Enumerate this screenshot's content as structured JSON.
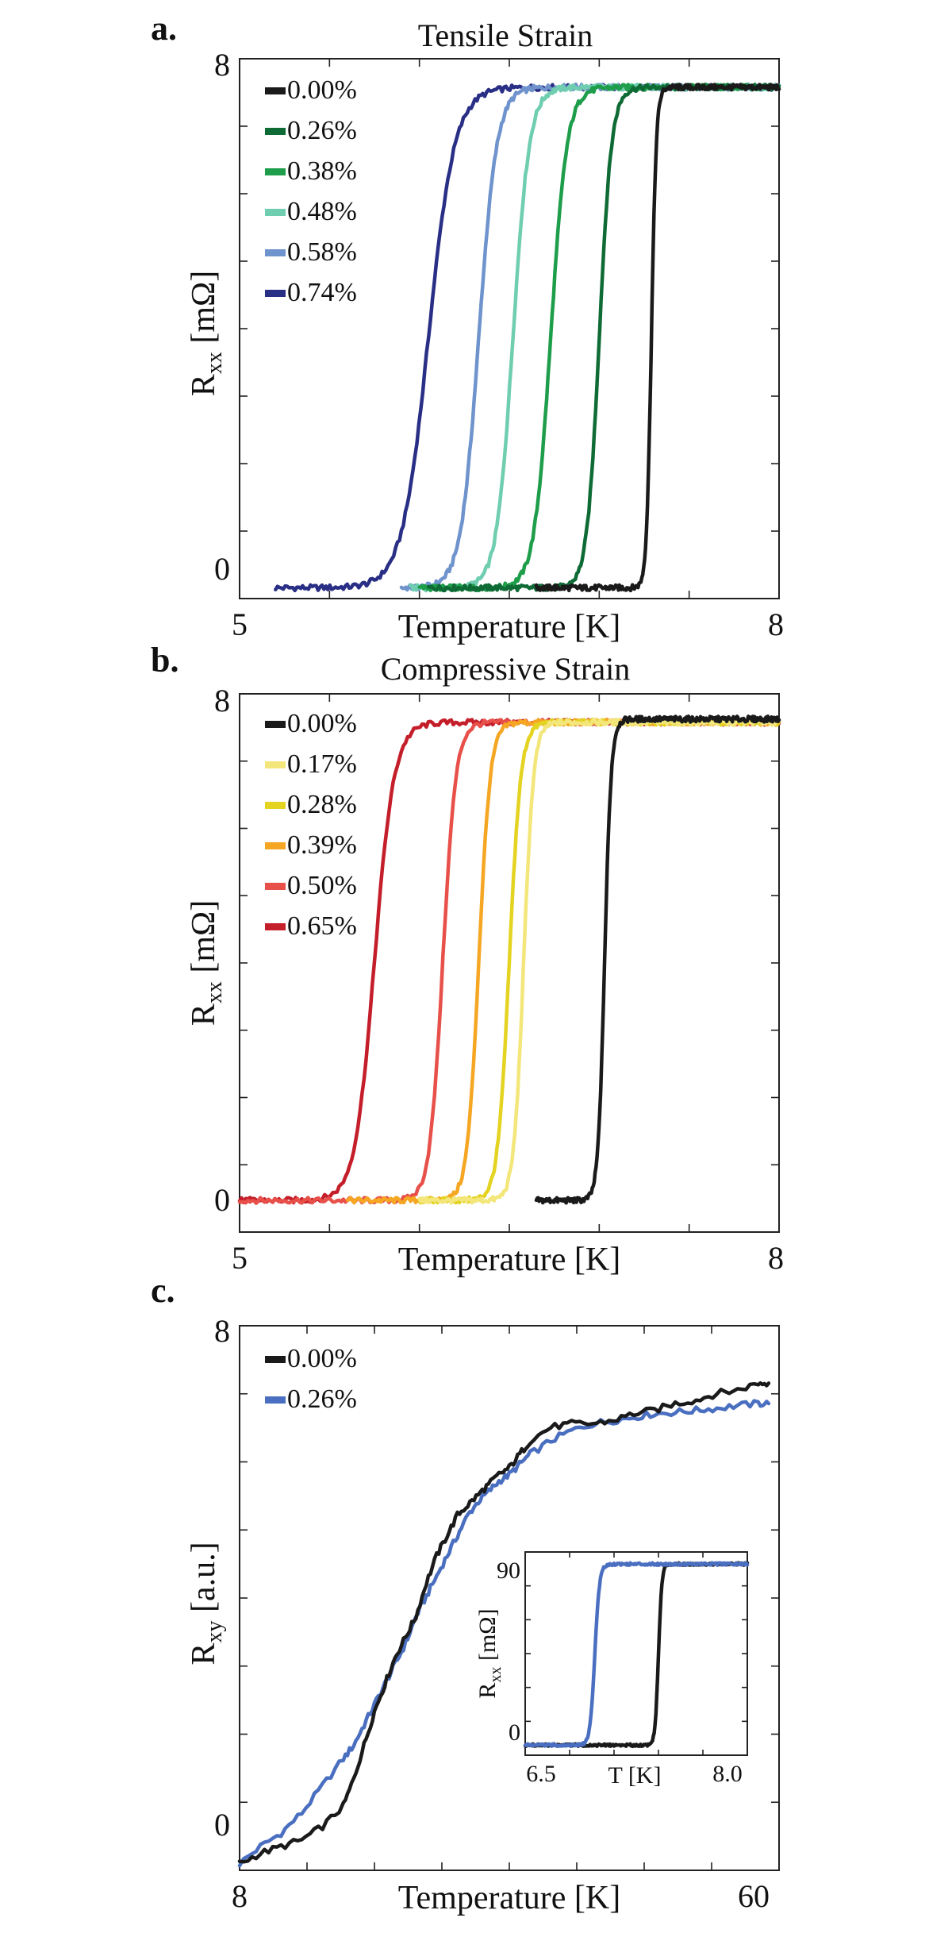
{
  "chart_data": [
    {
      "panel_label": "a.",
      "type": "line",
      "title": "Tensile Strain",
      "xlabel": "Temperature [K]",
      "ylabel_main": "R",
      "ylabel_sub": "xx",
      "ylabel_unit": " [mΩ]",
      "xlim": [
        5,
        8
      ],
      "ylim": [
        -0.17,
        8.35
      ],
      "xtick_labels": [
        "5",
        "8"
      ],
      "ytick_labels": [
        "0",
        "8"
      ],
      "legend_position": "top-left",
      "series": [
        {
          "name": "0.00%",
          "color": "#1a1a1a",
          "tc": 7.29,
          "width": 0.06,
          "x_start": 6.65,
          "top": 7.9
        },
        {
          "name": "0.26%",
          "color": "#0f6b35",
          "tc": 7.0,
          "width": 0.15,
          "x_start": 6.05,
          "top": 7.9
        },
        {
          "name": "0.38%",
          "color": "#1e9e4a",
          "tc": 6.73,
          "width": 0.2,
          "x_start": 6.0,
          "top": 7.9
        },
        {
          "name": "0.48%",
          "color": "#6fcdb0",
          "tc": 6.52,
          "width": 0.2,
          "x_start": 5.95,
          "top": 7.9
        },
        {
          "name": "0.58%",
          "color": "#6f93cc",
          "tc": 6.33,
          "width": 0.22,
          "x_start": 5.9,
          "top": 7.9
        },
        {
          "name": "0.74%",
          "color": "#2a2f86",
          "tc": 6.05,
          "width": 0.32,
          "x_start": 5.2,
          "top": 7.9
        }
      ]
    },
    {
      "panel_label": "b.",
      "type": "line",
      "title": "Compressive Strain",
      "xlabel": "Temperature [K]",
      "ylabel_main": "R",
      "ylabel_sub": "xx",
      "ylabel_unit": " [mΩ]",
      "xlim": [
        5,
        8
      ],
      "ylim": [
        -0.5,
        8.0
      ],
      "xtick_labels": [
        "5",
        "8"
      ],
      "ytick_labels": [
        "0",
        "8"
      ],
      "legend_position": "top-left",
      "series": [
        {
          "name": "0.00%",
          "color": "#1a1a1a",
          "tc": 7.03,
          "width": 0.08,
          "x_start": 6.65,
          "top": 7.6
        },
        {
          "name": "0.17%",
          "color": "#f3e67a",
          "tc": 6.58,
          "width": 0.12,
          "x_start": 6.0,
          "top": 7.55
        },
        {
          "name": "0.28%",
          "color": "#e4d320",
          "tc": 6.5,
          "width": 0.14,
          "x_start": 6.0,
          "top": 7.55
        },
        {
          "name": "0.39%",
          "color": "#f5a623",
          "tc": 6.33,
          "width": 0.14,
          "x_start": 5.6,
          "top": 7.55
        },
        {
          "name": "0.50%",
          "color": "#e8504a",
          "tc": 6.13,
          "width": 0.16,
          "x_start": 5.0,
          "top": 7.55
        },
        {
          "name": "0.65%",
          "color": "#c41e2a",
          "tc": 5.75,
          "width": 0.24,
          "x_start": 5.0,
          "top": 7.55
        }
      ]
    },
    {
      "panel_label": "c.",
      "type": "line",
      "title": "",
      "xlabel": "Temperature [K]",
      "ylabel_main": "R",
      "ylabel_sub": "xy",
      "ylabel_unit": " [a.u.]",
      "xlim": [
        8,
        60
      ],
      "ylim": [
        -0.05,
        8.0
      ],
      "xtick_labels": [
        "8",
        "60"
      ],
      "ytick_labels": [
        "0",
        "8"
      ],
      "legend_position": "top-left",
      "series": [
        {
          "name": "0.00%",
          "color": "#1a1a1a",
          "x": [
            8,
            10,
            12,
            14,
            16,
            18,
            19,
            20,
            21,
            22,
            23,
            24,
            25,
            26,
            27,
            28,
            29,
            30,
            31,
            32,
            33,
            34,
            35,
            36,
            38,
            40,
            42,
            44,
            46,
            48,
            50,
            52,
            54,
            56,
            58,
            59
          ],
          "y": [
            0.05,
            0.2,
            0.3,
            0.4,
            0.6,
            0.9,
            1.3,
            1.8,
            2.3,
            2.7,
            3.1,
            3.4,
            3.7,
            4.2,
            4.6,
            4.9,
            5.2,
            5.35,
            5.5,
            5.65,
            5.8,
            5.9,
            6.1,
            6.3,
            6.5,
            6.55,
            6.55,
            6.6,
            6.7,
            6.75,
            6.85,
            6.9,
            7.0,
            7.05,
            7.15,
            7.15
          ]
        },
        {
          "name": "0.26%",
          "color": "#4a6fc0",
          "x": [
            8,
            10,
            12,
            14,
            16,
            18,
            19,
            20,
            21,
            22,
            23,
            24,
            25,
            26,
            27,
            28,
            29,
            30,
            31,
            32,
            33,
            34,
            35,
            36,
            38,
            40,
            42,
            44,
            46,
            48,
            50,
            52,
            54,
            56,
            58,
            59
          ],
          "y": [
            0.05,
            0.3,
            0.5,
            0.8,
            1.2,
            1.6,
            1.8,
            2.1,
            2.4,
            2.7,
            3.0,
            3.3,
            3.7,
            4.0,
            4.3,
            4.6,
            4.9,
            5.2,
            5.4,
            5.55,
            5.7,
            5.8,
            5.95,
            6.1,
            6.3,
            6.45,
            6.55,
            6.6,
            6.65,
            6.7,
            6.72,
            6.75,
            6.78,
            6.82,
            6.85,
            6.85
          ]
        }
      ],
      "inset": {
        "type": "line",
        "xlabel": "T [K]",
        "ylabel_main": "R",
        "ylabel_sub": "xx",
        "ylabel_unit": " [mΩ]",
        "xlim": [
          6.5,
          8.0
        ],
        "ylim": [
          -5,
          96
        ],
        "xtick_labels": [
          "6.5",
          "8.0"
        ],
        "ytick_labels": [
          "0",
          "90"
        ],
        "series": [
          {
            "name": "0.00%",
            "color": "#1a1a1a",
            "tc": 7.4,
            "width": 0.05,
            "x_start": 6.5,
            "top": 90
          },
          {
            "name": "0.26%",
            "color": "#4a6fc0",
            "tc": 6.97,
            "width": 0.07,
            "x_start": 6.5,
            "top": 90
          }
        ]
      }
    }
  ]
}
